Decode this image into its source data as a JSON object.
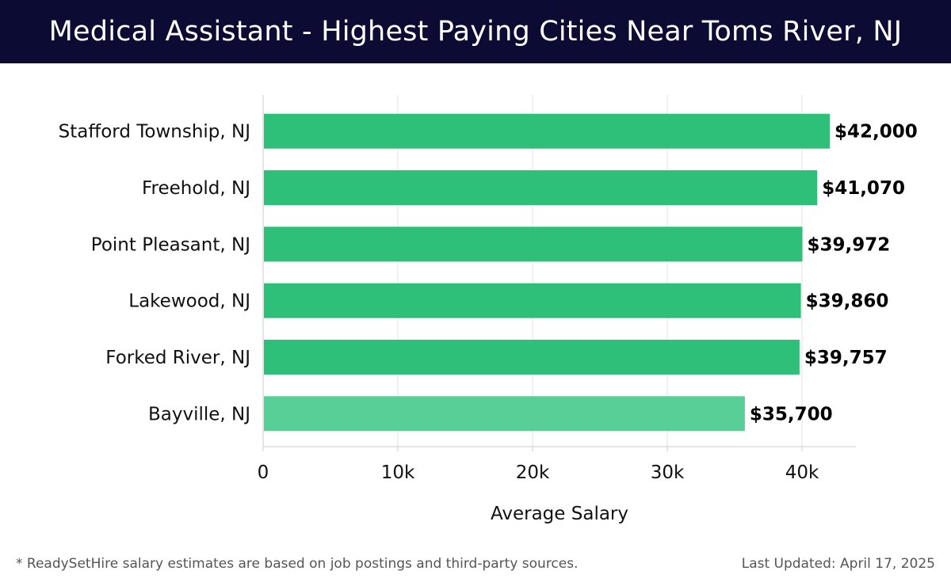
{
  "header": {
    "title": "Medical Assistant - Highest Paying Cities Near Toms River, NJ"
  },
  "chart_data": {
    "type": "bar",
    "orientation": "horizontal",
    "categories": [
      "Stafford Township, NJ",
      "Freehold, NJ",
      "Point Pleasant, NJ",
      "Lakewood, NJ",
      "Forked River, NJ",
      "Bayville, NJ"
    ],
    "values": [
      42000,
      41070,
      39972,
      39860,
      39757,
      35700
    ],
    "value_labels": [
      "$42,000",
      "$41,070",
      "$39,972",
      "$39,860",
      "$39,757",
      "$35,700"
    ],
    "xlabel": "Average Salary",
    "xlim": [
      0,
      44000
    ],
    "x_ticks": [
      0,
      10000,
      20000,
      30000,
      40000
    ],
    "x_tick_labels": [
      "0",
      "10k",
      "20k",
      "30k",
      "40k"
    ],
    "grid": true,
    "colors": {
      "bar": "#2ebf78",
      "bar_last": "#58cf96",
      "grid": "#e3e3e3",
      "axis": "#cccccc",
      "text": "#111111"
    }
  },
  "footer": {
    "note": "* ReadySetHire salary estimates are based on job postings and third-party sources.",
    "updated": "Last Updated: April 17, 2025"
  }
}
